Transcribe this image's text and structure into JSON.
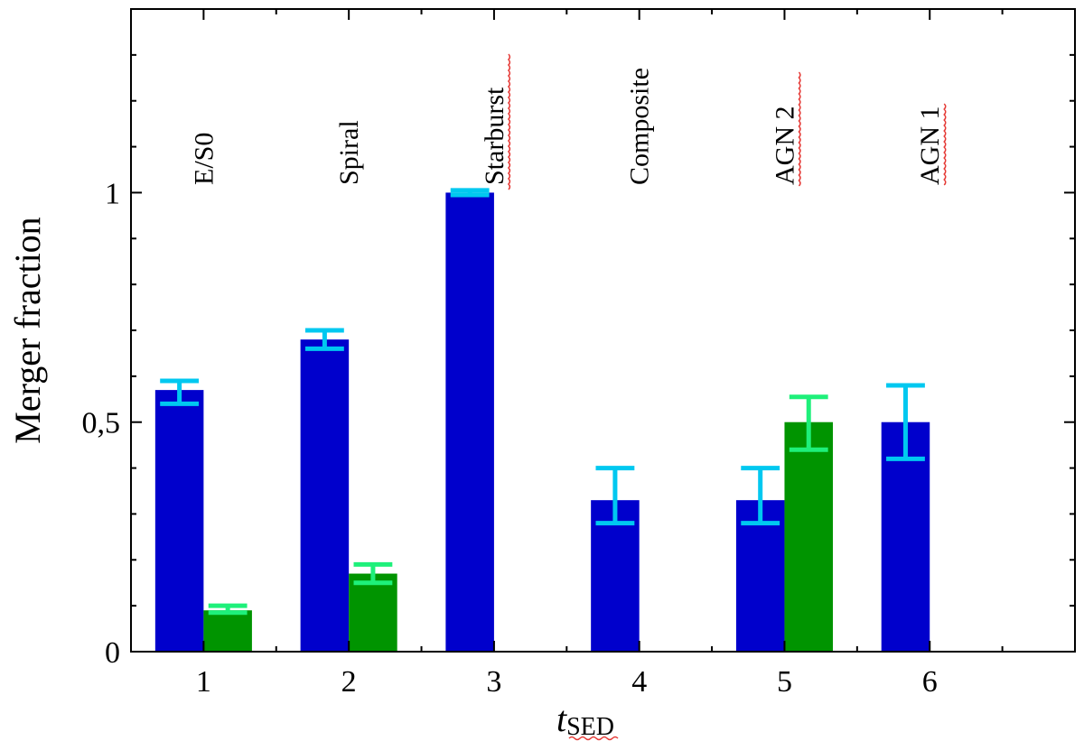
{
  "colors": {
    "blue_bar": "#0000cc",
    "blue_err": "#00c8f0",
    "green_bar": "#009400",
    "green_err": "#1ef07a",
    "axis": "#000000"
  },
  "chart_data": {
    "type": "bar",
    "title": "",
    "xlabel_main": "t",
    "xlabel_sub": "SED",
    "ylabel": "Merger fraction",
    "ylim": [
      0,
      1.4
    ],
    "xlim": [
      0.5,
      7.0
    ],
    "yticks": [
      0,
      0.5,
      1
    ],
    "ytick_labels": [
      "0",
      "0,5",
      "1"
    ],
    "categories": [
      "1",
      "2",
      "3",
      "4",
      "5",
      "6"
    ],
    "category_names": [
      "E/S0",
      "Spiral",
      "Starburst",
      "Composite",
      "AGN 2",
      "AGN 1"
    ],
    "series": [
      {
        "name": "blue",
        "values": [
          0.57,
          0.68,
          1.0,
          0.33,
          0.33,
          0.5
        ],
        "err_low": [
          0.54,
          0.66,
          0.995,
          0.28,
          0.28,
          0.42
        ],
        "err_high": [
          0.59,
          0.7,
          1.005,
          0.4,
          0.4,
          0.58
        ]
      },
      {
        "name": "green",
        "values": [
          0.09,
          0.17,
          null,
          null,
          0.5,
          null
        ],
        "err_low": [
          0.085,
          0.15,
          null,
          null,
          0.44,
          null
        ],
        "err_high": [
          0.1,
          0.19,
          null,
          null,
          0.555,
          null
        ]
      }
    ]
  }
}
